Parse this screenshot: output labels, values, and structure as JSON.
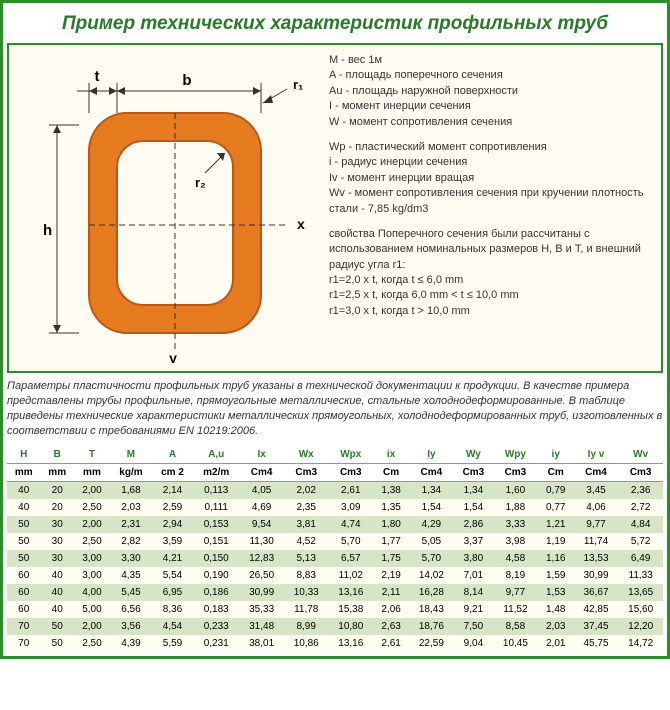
{
  "title": "Пример технических характеристик профильных труб",
  "diagram": {
    "labels": {
      "t": "t",
      "b": "b",
      "r1": "r₁",
      "r2": "r₂",
      "h": "h",
      "x": "x",
      "y": "y"
    },
    "colors": {
      "pipe_outer": "#e67a1f",
      "pipe_outline": "#b8581a",
      "bg": "#fffdf2",
      "axis": "#333"
    }
  },
  "legend": {
    "block1": "M - вес 1м\nA - площадь поперечного сечения\nAu - площадь наружной поверхности\nI - момент инерции сечения\nW - момент сопротивления сечения",
    "block2": "Wp - пластический момент сопротивления\ni - радиус инерции сечения\nIv - момент инерции вращая\nWv - момент сопротивления сечения при кручении плотность стали - 7,85 kg/dm3",
    "block3": "свойства Поперечного сечения были рассчитаны с использованием номинальных размеров H, B и T, и внешний радиус угла r1:\nr1=2,0 x t, когда t ≤ 6,0 mm\nr1=2,5 x t, когда 6,0 mm < t ≤ 10,0 mm\nr1=3,0 x t, когда t > 10,0 mm"
  },
  "note": "Параметры пластичности профильных труб указаны в технической документации к продукции. В качестве примера представлены трубы профильные, прямоугольные металлические, стальные холоднодеформированные. В таблице приведены технические характеристики металлических прямоугольных, холоднодеформированных труб, изготовленных в соответствии с требованиями EN 10219:2006.",
  "table": {
    "headers": [
      "H",
      "B",
      "T",
      "M",
      "A",
      "A,u",
      "Ix",
      "Wx",
      "Wpx",
      "ix",
      "Iy",
      "Wy",
      "Wpy",
      "iy",
      "Iy v",
      "Wv"
    ],
    "units": [
      "mm",
      "mm",
      "mm",
      "kg/m",
      "cm 2",
      "m2/m",
      "Cm4",
      "Cm3",
      "Cm3",
      "Cm",
      "Cm4",
      "Cm3",
      "Cm3",
      "Cm",
      "Cm4",
      "Cm3"
    ],
    "rows": [
      [
        "40",
        "20",
        "2,00",
        "1,68",
        "2,14",
        "0,113",
        "4,05",
        "2,02",
        "2,61",
        "1,38",
        "1,34",
        "1,34",
        "1,60",
        "0,79",
        "3,45",
        "2,36"
      ],
      [
        "40",
        "20",
        "2,50",
        "2,03",
        "2,59",
        "0,111",
        "4,69",
        "2,35",
        "3,09",
        "1,35",
        "1,54",
        "1,54",
        "1,88",
        "0,77",
        "4,06",
        "2,72"
      ],
      [
        "50",
        "30",
        "2,00",
        "2,31",
        "2,94",
        "0,153",
        "9,54",
        "3,81",
        "4,74",
        "1,80",
        "4,29",
        "2,86",
        "3,33",
        "1,21",
        "9,77",
        "4,84"
      ],
      [
        "50",
        "30",
        "2,50",
        "2,82",
        "3,59",
        "0,151",
        "11,30",
        "4,52",
        "5,70",
        "1,77",
        "5,05",
        "3,37",
        "3,98",
        "1,19",
        "11,74",
        "5,72"
      ],
      [
        "50",
        "30",
        "3,00",
        "3,30",
        "4,21",
        "0,150",
        "12,83",
        "5,13",
        "6,57",
        "1,75",
        "5,70",
        "3,80",
        "4,58",
        "1,16",
        "13,53",
        "6,49"
      ],
      [
        "60",
        "40",
        "3,00",
        "4,35",
        "5,54",
        "0,190",
        "26,50",
        "8,83",
        "11,02",
        "2,19",
        "14,02",
        "7,01",
        "8,19",
        "1,59",
        "30,99",
        "11,33"
      ],
      [
        "60",
        "40",
        "4,00",
        "5,45",
        "6,95",
        "0,186",
        "30,99",
        "10,33",
        "13,16",
        "2,11",
        "16,28",
        "8,14",
        "9,77",
        "1,53",
        "36,67",
        "13,65"
      ],
      [
        "60",
        "40",
        "5,00",
        "6,56",
        "8,36",
        "0,183",
        "35,33",
        "11,78",
        "15,38",
        "2,06",
        "18,43",
        "9,21",
        "11,52",
        "1,48",
        "42,85",
        "15,60"
      ],
      [
        "70",
        "50",
        "2,00",
        "3,56",
        "4,54",
        "0,233",
        "31,48",
        "8,99",
        "10,80",
        "2,63",
        "18,76",
        "7,50",
        "8,58",
        "2,03",
        "37,45",
        "12,20"
      ],
      [
        "70",
        "50",
        "2,50",
        "4,39",
        "5,59",
        "0,231",
        "38,01",
        "10,86",
        "13,16",
        "2,61",
        "22,59",
        "9,04",
        "10,45",
        "2,01",
        "45,75",
        "14,72"
      ]
    ],
    "row_bg_odd": "#d5e5c5",
    "row_bg_even": "#fffdf2"
  }
}
